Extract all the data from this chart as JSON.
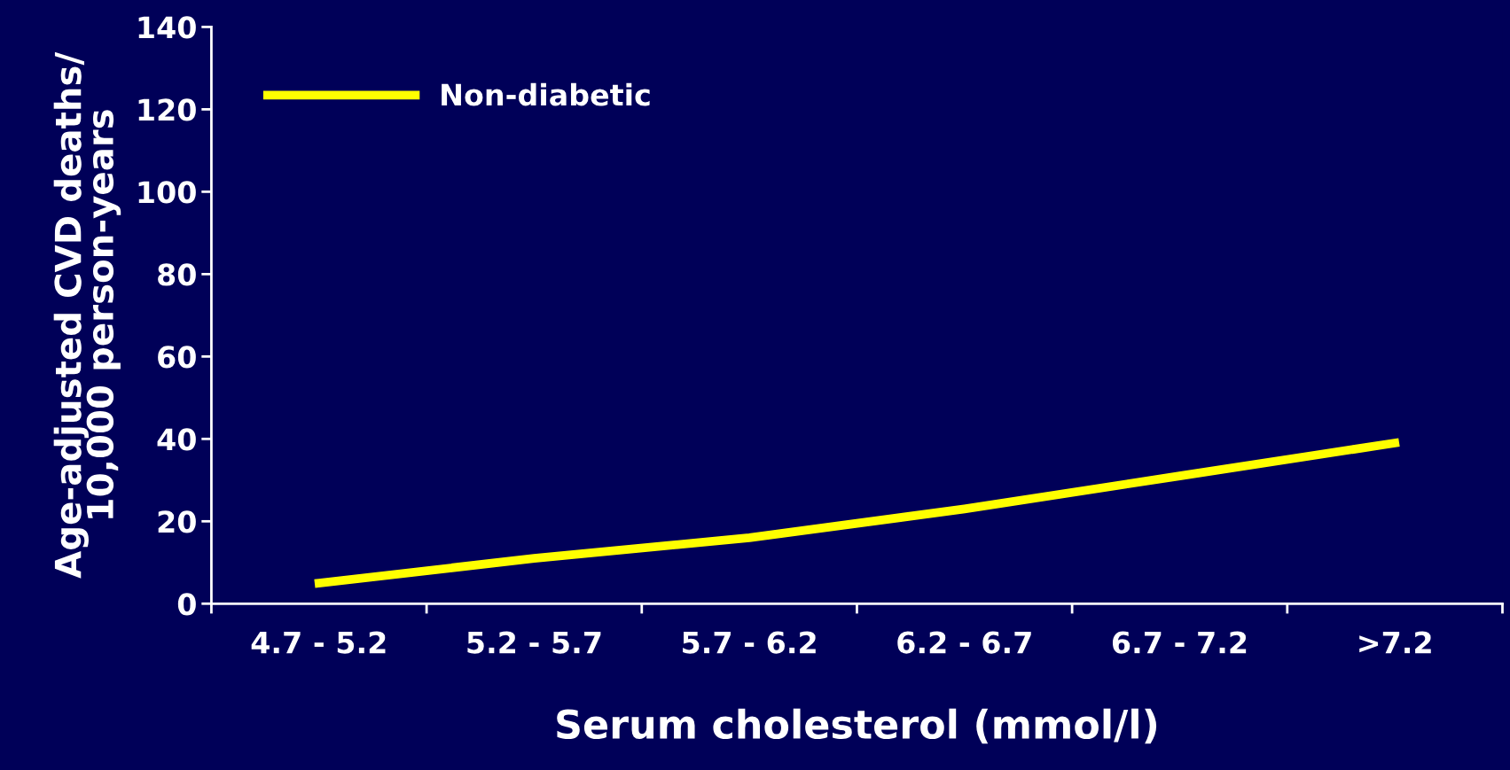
{
  "chart_data": {
    "type": "line",
    "xlabel": "Serum cholesterol (mmol/l)",
    "ylabel": "Age-adjusted CVD deaths/\n10,000 person-years",
    "categories": [
      "4.7 - 5.2",
      "5.2 - 5.7",
      "5.7 - 6.2",
      "6.2 - 6.7",
      "6.7 - 7.2",
      ">7.2"
    ],
    "series": [
      {
        "name": "Non-diabetic",
        "color": "#ffff00",
        "values": [
          5,
          11,
          16,
          23,
          31,
          39
        ]
      }
    ],
    "ylim": [
      0,
      140
    ],
    "yticks": [
      0,
      20,
      40,
      60,
      80,
      100,
      120,
      140
    ],
    "grid": false,
    "legend": "top left",
    "marker": "none",
    "line_style": "solid"
  }
}
